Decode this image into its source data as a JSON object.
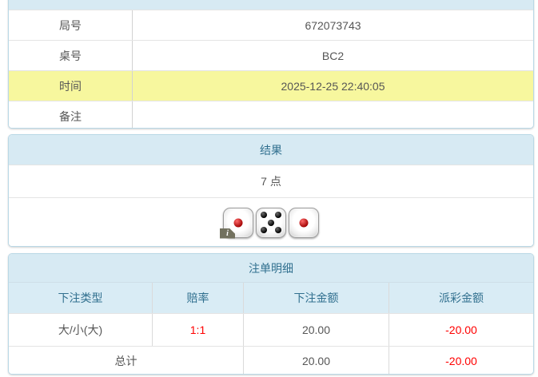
{
  "info": {
    "rows": [
      {
        "label": "局号",
        "value": "672073743"
      },
      {
        "label": "桌号",
        "value": "BC2"
      },
      {
        "label": "时间",
        "value": "2025-12-25 22:40:05"
      },
      {
        "label": "备注",
        "value": ""
      }
    ]
  },
  "result": {
    "title": "结果",
    "points": "7 点",
    "dice": [
      {
        "value": 1,
        "color": "red"
      },
      {
        "value": 5,
        "color": "black"
      },
      {
        "value": 1,
        "color": "red"
      }
    ],
    "info_badge": "i"
  },
  "bets": {
    "title": "注单明细",
    "columns": [
      "下注类型",
      "赔率",
      "下注金额",
      "派彩金额"
    ],
    "rows": [
      {
        "type": "大/小(大)",
        "odds": "1:1",
        "bet": "20.00",
        "payout": "-20.00"
      }
    ],
    "total": {
      "label": "总计",
      "bet": "20.00",
      "payout": "-20.00"
    }
  },
  "colors": {
    "header_bg": "#d7eaf3",
    "header_text": "#31708f",
    "highlight_row": "#f7f79e",
    "negative": "#ff0000",
    "panel_border": "#b9d8e6"
  }
}
